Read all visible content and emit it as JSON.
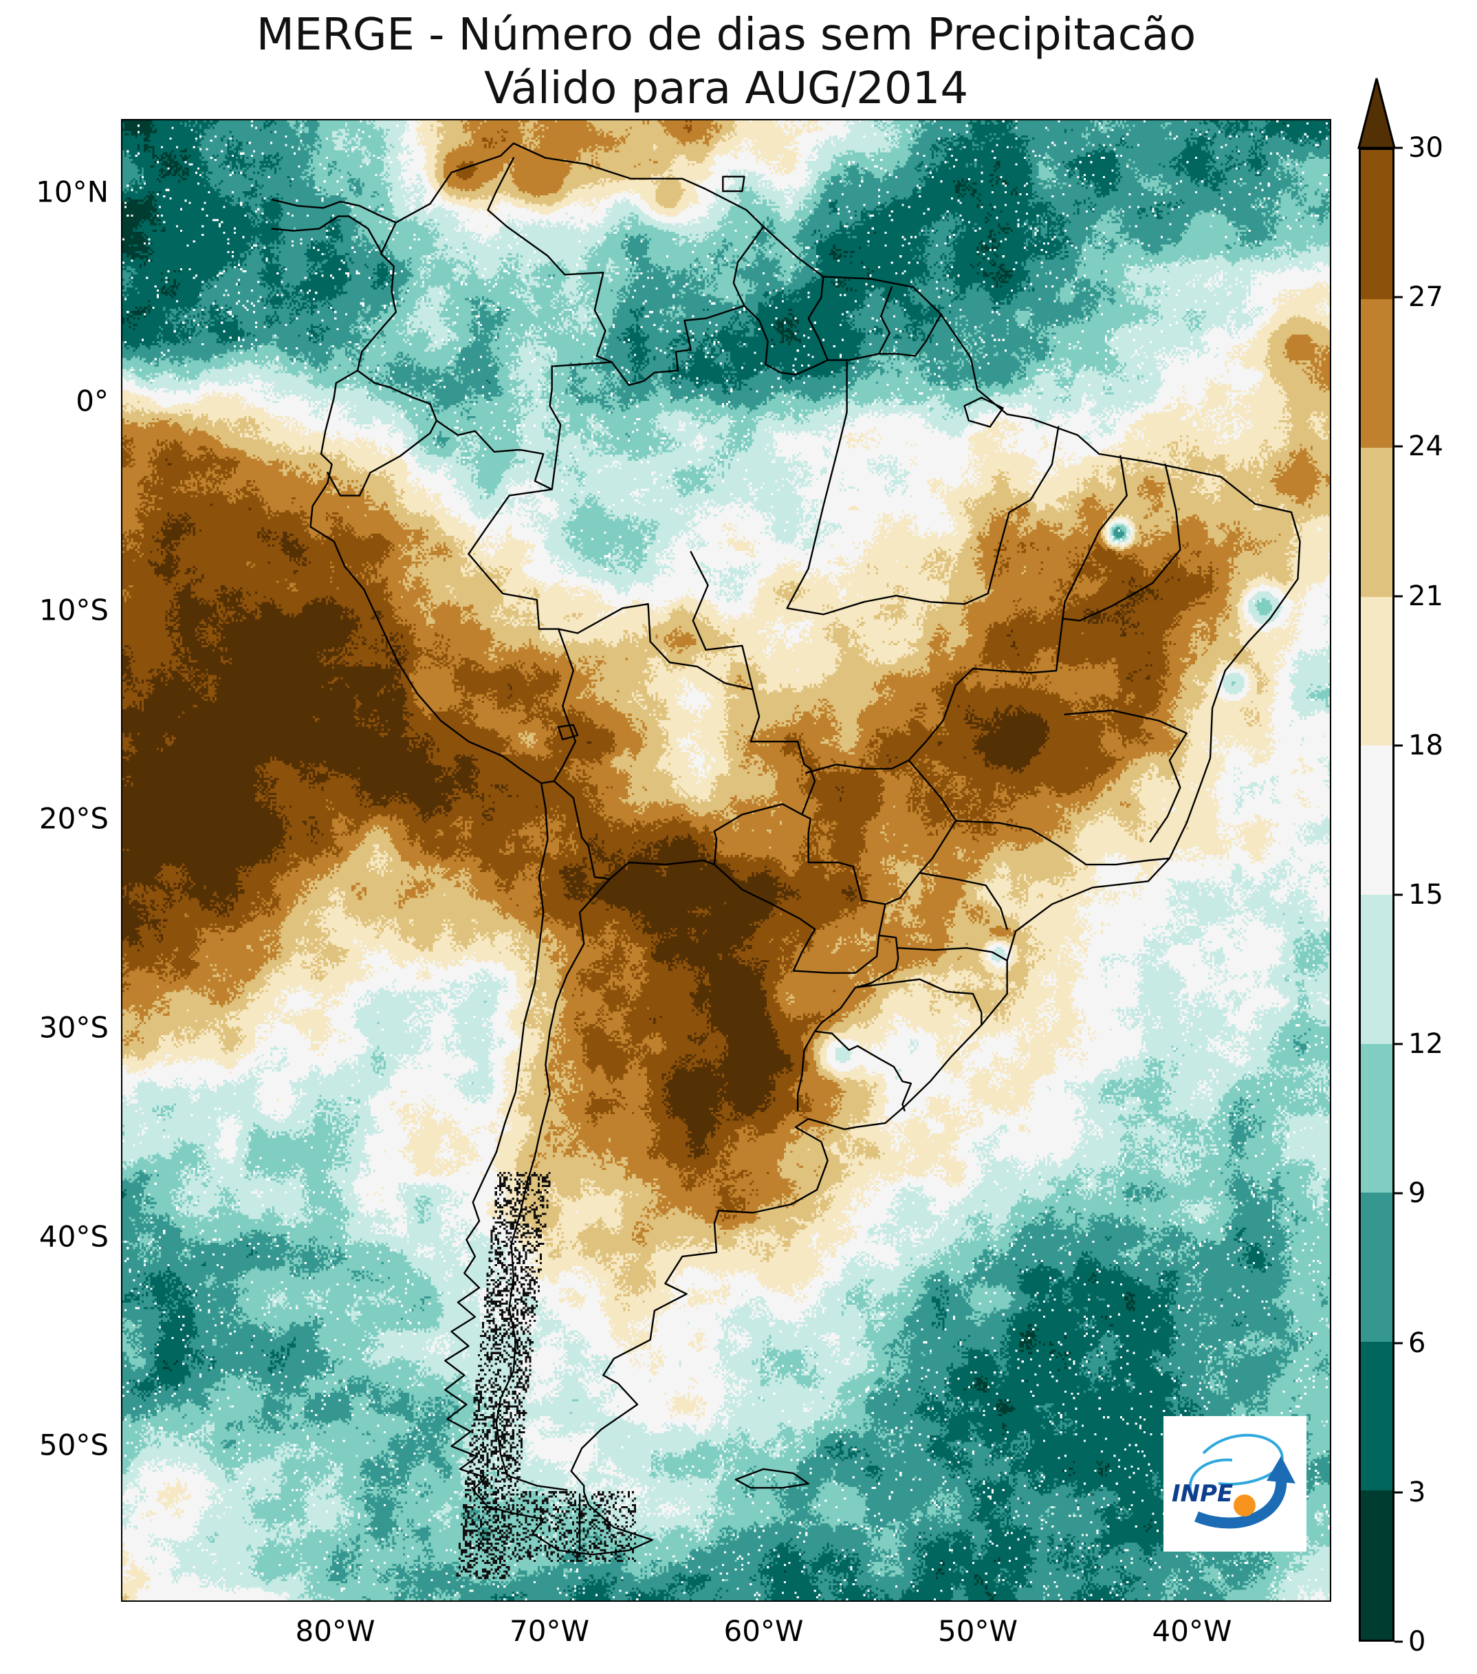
{
  "title": {
    "line1": "MERGE - Número de dias sem Precipitacão",
    "line2": "Válido para AUG/2014"
  },
  "logo": {
    "text": "INPE"
  },
  "chart_data": {
    "type": "heatmap",
    "title": "MERGE - Número de dias sem Precipitacão",
    "subtitle": "Válido para AUG/2014",
    "variable": "Número de dias sem precipitação",
    "period": "AUG/2014",
    "projection": "equirectangular",
    "lon_range": [
      -90,
      -33.5
    ],
    "lat_range": [
      -57.5,
      13.5
    ],
    "grid_on": false,
    "legend_position": "right-colorbar",
    "x_ticks": [
      {
        "lon": -80,
        "label": "80°W"
      },
      {
        "lon": -70,
        "label": "70°W"
      },
      {
        "lon": -60,
        "label": "60°W"
      },
      {
        "lon": -50,
        "label": "50°W"
      },
      {
        "lon": -40,
        "label": "40°W"
      }
    ],
    "y_ticks": [
      {
        "lat": 10,
        "label": "10°N"
      },
      {
        "lat": 0,
        "label": "0°"
      },
      {
        "lat": -10,
        "label": "10°S"
      },
      {
        "lat": -20,
        "label": "20°S"
      },
      {
        "lat": -30,
        "label": "30°S"
      },
      {
        "lat": -40,
        "label": "40°S"
      },
      {
        "lat": -50,
        "label": "50°S"
      }
    ],
    "colorbar": {
      "ticks": [
        0,
        3,
        6,
        9,
        12,
        15,
        18,
        21,
        24,
        27,
        30
      ],
      "extend": "max",
      "colors": [
        "#003c30",
        "#01665e",
        "#35978f",
        "#80cdc1",
        "#c7eae5",
        "#f5f5f5",
        "#f6e8c3",
        "#dfc27d",
        "#bf812d",
        "#8c510a"
      ],
      "over_color": "#543005"
    },
    "grid": {
      "lons": [
        -88,
        -83,
        -78,
        -73,
        -68,
        -63,
        -58,
        -53,
        -48,
        -43,
        -38,
        -33
      ],
      "lats": [
        13,
        8,
        3,
        -2,
        -7,
        -12,
        -17,
        -22,
        -27,
        -32,
        -37,
        -42,
        -47,
        -52,
        -57
      ],
      "values": [
        [
          5,
          5,
          12,
          26,
          26,
          24,
          18,
          7,
          6,
          7,
          7,
          7
        ],
        [
          4,
          5,
          8,
          14,
          12,
          10,
          7,
          5,
          5,
          7,
          9,
          10
        ],
        [
          6,
          8,
          10,
          10,
          9,
          5,
          4,
          5,
          8,
          13,
          18,
          24
        ],
        [
          26,
          24,
          14,
          9,
          12,
          13,
          14,
          16,
          17,
          18,
          21,
          24
        ],
        [
          29,
          29,
          26,
          20,
          12,
          15,
          17,
          20,
          26,
          27,
          26,
          20
        ],
        [
          31,
          31,
          30,
          27,
          24,
          21,
          20,
          22,
          27,
          28,
          24,
          12
        ],
        [
          32,
          32,
          31,
          29,
          27,
          19,
          27,
          28,
          28,
          25,
          17,
          16
        ],
        [
          31,
          28,
          22,
          27,
          30,
          30,
          28,
          26,
          23,
          18,
          16,
          16
        ],
        [
          27,
          24,
          19,
          16,
          29,
          30,
          28,
          23,
          22,
          16,
          14,
          13
        ],
        [
          18,
          15,
          14,
          15,
          28,
          31,
          26,
          16,
          19,
          14,
          12,
          12
        ],
        [
          10,
          12,
          16,
          18,
          24,
          29,
          23,
          18,
          14,
          11,
          10,
          11
        ],
        [
          8,
          9,
          11,
          15,
          18,
          20,
          17,
          10,
          7,
          6,
          8,
          9
        ],
        [
          7,
          8,
          10,
          13,
          16,
          16,
          12,
          8,
          6,
          5,
          7,
          8
        ],
        [
          17,
          12,
          9,
          12,
          14,
          13,
          8,
          7,
          6,
          5,
          8,
          9
        ],
        [
          18,
          14,
          9,
          8,
          7,
          6,
          6,
          7,
          7,
          8,
          10,
          13
        ]
      ]
    },
    "spots": [
      {
        "lon": -43.4,
        "lat": -6.3,
        "r": 1.1,
        "v": 5
      },
      {
        "lon": -36.6,
        "lat": -9.8,
        "r": 1.6,
        "v": 10
      },
      {
        "lon": -38.0,
        "lat": -13.5,
        "r": 1.4,
        "v": 11
      },
      {
        "lon": -49.0,
        "lat": -26.5,
        "r": 1.2,
        "v": 12
      },
      {
        "lon": -56.3,
        "lat": -31.3,
        "r": 1.8,
        "v": 13
      },
      {
        "lon": -74.0,
        "lat": 11.0,
        "r": 2.2,
        "v": 28
      },
      {
        "lon": -70.5,
        "lat": 10.8,
        "r": 2.3,
        "v": 27
      },
      {
        "lon": -64.5,
        "lat": 9.8,
        "r": 2.0,
        "v": 23
      },
      {
        "lon": -35.0,
        "lat": 2.5,
        "r": 2.5,
        "v": 25
      },
      {
        "lon": -85.5,
        "lat": -20.0,
        "r": 4.5,
        "v": 32
      },
      {
        "lon": -60.5,
        "lat": -31.0,
        "r": 3.2,
        "v": 32
      },
      {
        "lon": -47.5,
        "lat": -16.0,
        "r": 4.0,
        "v": 31
      },
      {
        "lon": -57.5,
        "lat": 2.5,
        "r": 2.8,
        "v": 3
      },
      {
        "lon": -86.0,
        "lat": 8.0,
        "r": 3.5,
        "v": 4
      },
      {
        "lon": -42.0,
        "lat": -50.0,
        "r": 4.0,
        "v": 5
      }
    ]
  }
}
